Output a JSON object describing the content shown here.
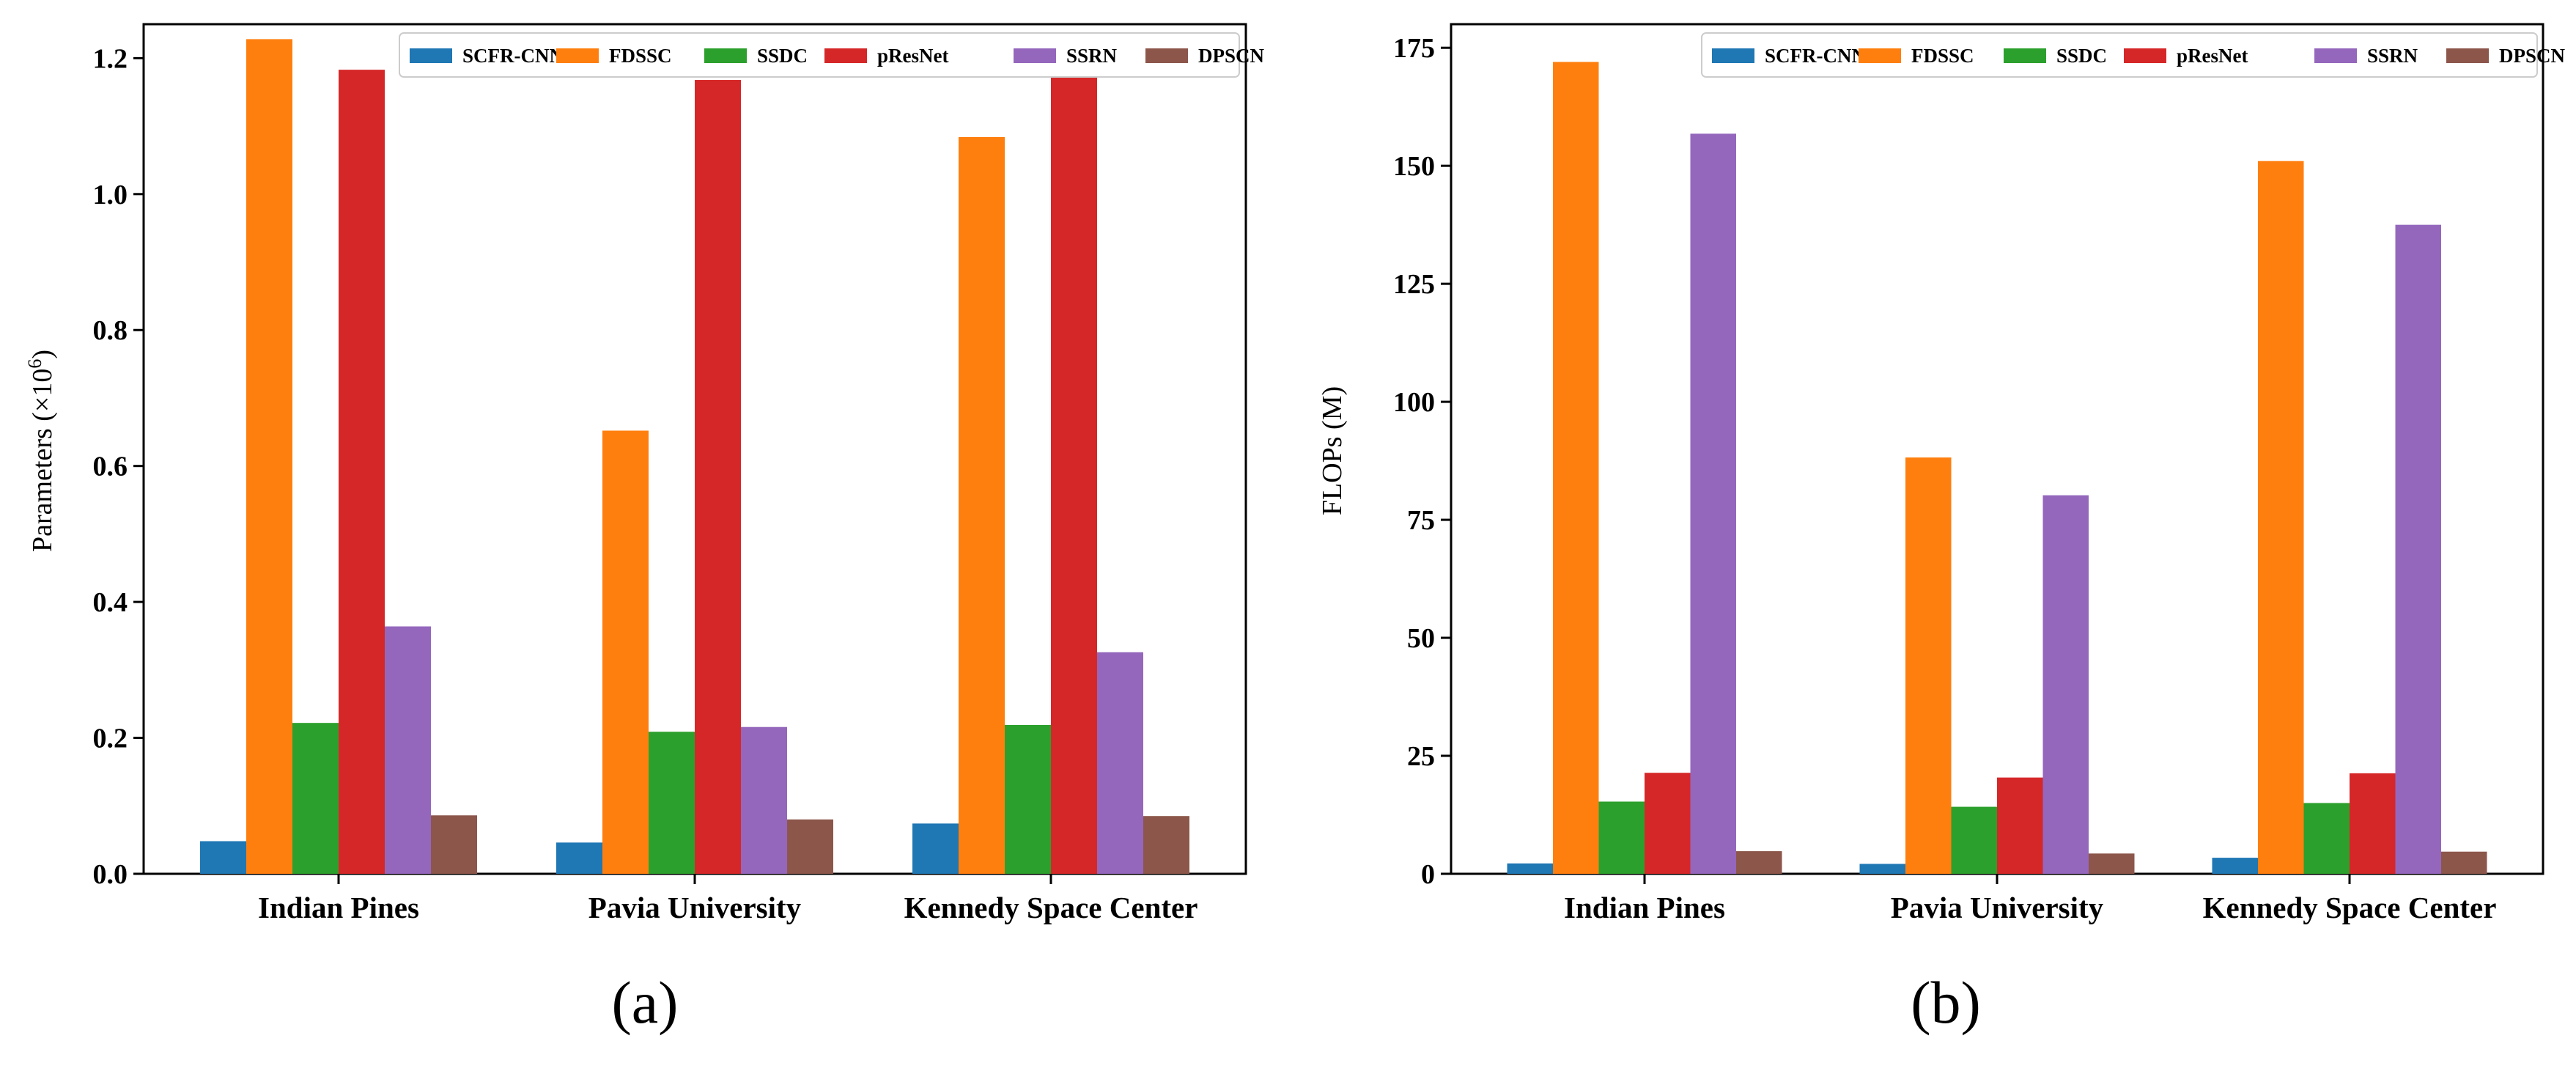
{
  "chart_data": [
    {
      "type": "bar",
      "title": "",
      "xlabel": "",
      "ylabel": "Parameters (×10",
      "ylabel_sup": "6",
      "ylabel_close": ")",
      "ylim": [
        0,
        1.25
      ],
      "yticks": [
        0.0,
        0.2,
        0.4,
        0.6,
        0.8,
        1.0,
        1.2
      ],
      "ytick_labels": [
        "0.0",
        "0.2",
        "0.4",
        "0.6",
        "0.8",
        "1.0",
        "1.2"
      ],
      "grid": false,
      "legend_position": "top-right",
      "categories": [
        "Indian Pines",
        "Pavia University",
        "Kennedy Space Center"
      ],
      "series": [
        {
          "name": "SCFR-CNN",
          "color": "#1f77b4",
          "values": [
            0.048,
            0.046,
            0.074
          ]
        },
        {
          "name": "FDSSC",
          "color": "#ff7f0e",
          "values": [
            1.228,
            0.652,
            1.084
          ]
        },
        {
          "name": "SSDC",
          "color": "#2ca02c",
          "values": [
            0.222,
            0.209,
            0.219
          ]
        },
        {
          "name": "pResNet",
          "color": "#d62728",
          "values": [
            1.183,
            1.168,
            1.178
          ]
        },
        {
          "name": "SSRN",
          "color": "#9467bd",
          "values": [
            0.364,
            0.216,
            0.326
          ]
        },
        {
          "name": "DPSCN",
          "color": "#8c564b",
          "values": [
            0.086,
            0.08,
            0.085
          ]
        }
      ],
      "panel_label": "(a)"
    },
    {
      "type": "bar",
      "title": "",
      "xlabel": "",
      "ylabel": "FLOPs (M)",
      "ylim": [
        0,
        180
      ],
      "yticks": [
        0,
        25,
        50,
        75,
        100,
        125,
        150,
        175
      ],
      "ytick_labels": [
        "0",
        "25",
        "50",
        "75",
        "100",
        "125",
        "150",
        "175"
      ],
      "grid": false,
      "legend_position": "top-right",
      "categories": [
        "Indian Pines",
        "Pavia University",
        "Kennedy Space Center"
      ],
      "series": [
        {
          "name": "SCFR-CNN",
          "color": "#1f77b4",
          "values": [
            2.2,
            2.1,
            3.4
          ]
        },
        {
          "name": "FDSSC",
          "color": "#ff7f0e",
          "values": [
            172.0,
            88.2,
            151.0
          ]
        },
        {
          "name": "SSDC",
          "color": "#2ca02c",
          "values": [
            15.3,
            14.2,
            15.0
          ]
        },
        {
          "name": "pResNet",
          "color": "#d62728",
          "values": [
            21.4,
            20.4,
            21.3
          ]
        },
        {
          "name": "SSRN",
          "color": "#9467bd",
          "values": [
            156.8,
            80.2,
            137.5
          ]
        },
        {
          "name": "DPSCN",
          "color": "#8c564b",
          "values": [
            4.8,
            4.3,
            4.7
          ]
        }
      ],
      "panel_label": "(b)"
    }
  ]
}
